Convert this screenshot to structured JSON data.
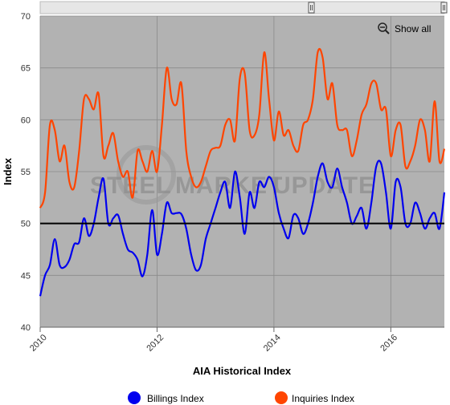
{
  "chart_data": {
    "type": "line",
    "title": "",
    "xlabel": "AIA Historical Index",
    "ylabel": "Index",
    "xlim": [
      "2010-01",
      "2016-12"
    ],
    "ylim": [
      40,
      70
    ],
    "x_ticks": [
      "2010",
      "2012",
      "2014",
      "2016"
    ],
    "y_ticks": [
      40,
      45,
      50,
      55,
      60,
      65,
      70
    ],
    "reference_line": 50,
    "grid": true,
    "legend_position": "bottom",
    "zoom_button": "Show all",
    "watermark": {
      "part1": "STEEL",
      "part2": "MARKET",
      "part3": "UPDATE"
    },
    "x": [
      "2010-01",
      "2010-02",
      "2010-03",
      "2010-04",
      "2010-05",
      "2010-06",
      "2010-07",
      "2010-08",
      "2010-09",
      "2010-10",
      "2010-11",
      "2010-12",
      "2011-01",
      "2011-02",
      "2011-03",
      "2011-04",
      "2011-05",
      "2011-06",
      "2011-07",
      "2011-08",
      "2011-09",
      "2011-10",
      "2011-11",
      "2011-12",
      "2012-01",
      "2012-02",
      "2012-03",
      "2012-04",
      "2012-05",
      "2012-06",
      "2012-07",
      "2012-08",
      "2012-09",
      "2012-10",
      "2012-11",
      "2012-12",
      "2013-01",
      "2013-02",
      "2013-03",
      "2013-04",
      "2013-05",
      "2013-06",
      "2013-07",
      "2013-08",
      "2013-09",
      "2013-10",
      "2013-11",
      "2013-12",
      "2014-01",
      "2014-02",
      "2014-03",
      "2014-04",
      "2014-05",
      "2014-06",
      "2014-07",
      "2014-08",
      "2014-09",
      "2014-10",
      "2014-11",
      "2014-12",
      "2015-01",
      "2015-02",
      "2015-03",
      "2015-04",
      "2015-05",
      "2015-06",
      "2015-07",
      "2015-08",
      "2015-09",
      "2015-10",
      "2015-11",
      "2015-12",
      "2016-01",
      "2016-02",
      "2016-03",
      "2016-04",
      "2016-05",
      "2016-06",
      "2016-07",
      "2016-08",
      "2016-09",
      "2016-10",
      "2016-11",
      "2016-12"
    ],
    "series": [
      {
        "name": "Billings Index",
        "color": "#0000ee",
        "values": [
          43.0,
          45.0,
          46.0,
          48.5,
          46.0,
          45.8,
          46.5,
          48.0,
          48.2,
          50.5,
          48.8,
          50.0,
          52.5,
          54.3,
          50.0,
          50.5,
          50.8,
          49.0,
          47.5,
          47.2,
          46.5,
          44.9,
          47.0,
          51.3,
          47.0,
          49.0,
          52.0,
          51.0,
          51.0,
          50.9,
          49.5,
          47.0,
          45.5,
          46.0,
          48.5,
          50.0,
          51.5,
          53.0,
          54.0,
          51.5,
          55.0,
          52.5,
          49.0,
          53.0,
          51.5,
          54.0,
          53.5,
          54.5,
          53.5,
          51.0,
          49.5,
          48.6,
          50.8,
          50.5,
          49.0,
          50.0,
          52.0,
          54.5,
          55.8,
          54.0,
          53.5,
          55.3,
          53.5,
          52.0,
          50.0,
          50.7,
          51.5,
          49.5,
          52.0,
          55.5,
          55.8,
          53.0,
          49.5,
          54.0,
          53.5,
          50.0,
          50.0,
          52.0,
          51.0,
          49.5,
          50.5,
          51.0,
          49.5,
          53.0
        ]
      },
      {
        "name": "Inquiries Index",
        "color": "#ff4500",
        "values": [
          51.5,
          53.0,
          59.5,
          59.0,
          56.0,
          57.5,
          54.0,
          53.5,
          57.0,
          62.0,
          62.0,
          61.0,
          62.5,
          56.5,
          57.5,
          58.7,
          56.0,
          54.5,
          55.0,
          52.5,
          57.0,
          56.0,
          55.0,
          57.0,
          55.0,
          59.5,
          65.0,
          62.0,
          61.5,
          63.5,
          57.0,
          54.5,
          53.5,
          54.0,
          55.5,
          57.0,
          57.3,
          57.5,
          59.5,
          60.0,
          58.0,
          64.0,
          64.5,
          59.0,
          58.5,
          60.5,
          66.5,
          62.0,
          58.0,
          60.8,
          58.5,
          59.0,
          57.5,
          57.0,
          59.5,
          60.0,
          62.0,
          66.5,
          66.0,
          62.0,
          63.5,
          59.5,
          59.0,
          59.0,
          56.5,
          58.0,
          60.5,
          61.5,
          63.5,
          63.5,
          61.0,
          61.0,
          56.5,
          59.0,
          59.5,
          55.5,
          56.0,
          57.5,
          60.0,
          59.0,
          56.0,
          61.8,
          56.0,
          57.2
        ]
      }
    ]
  }
}
